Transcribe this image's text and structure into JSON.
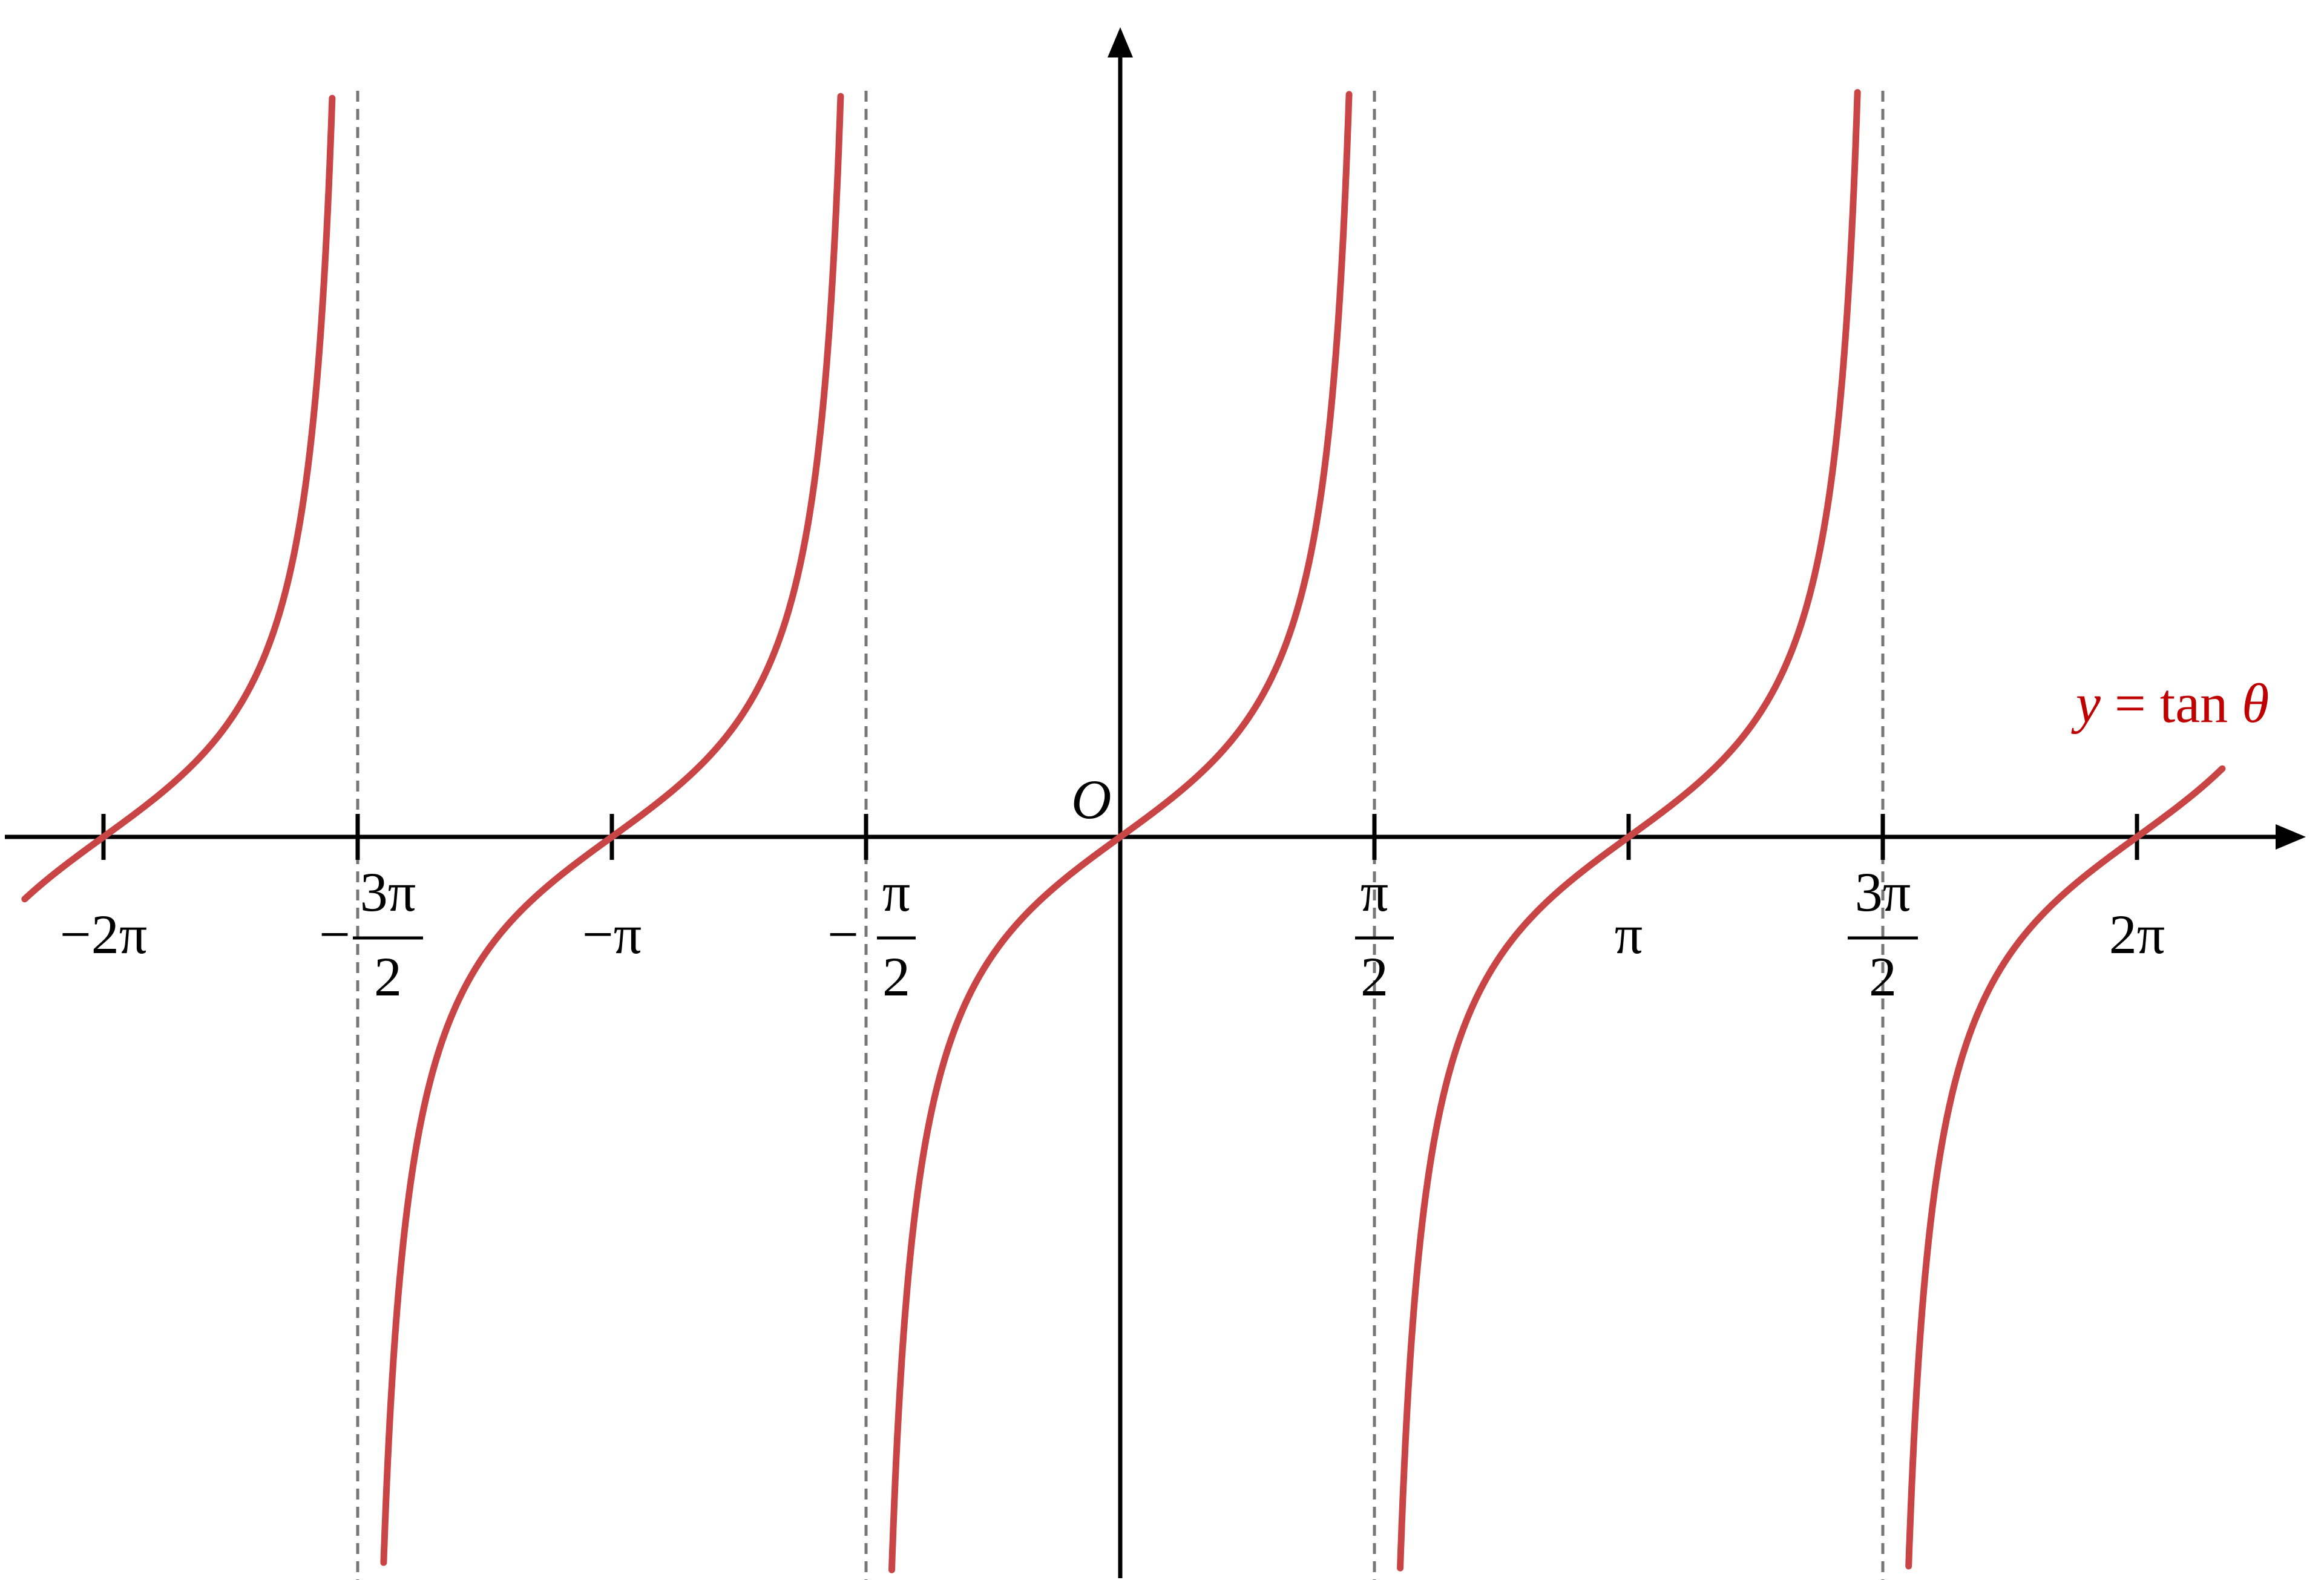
{
  "chart_data": {
    "type": "line",
    "title": "",
    "xlabel": "",
    "ylabel": "",
    "origin_label": "O",
    "series": [
      {
        "name": "y = tan θ",
        "function": "tan",
        "x_range": [
          -6.77,
          6.81
        ],
        "color": "#C94444"
      }
    ],
    "curve_label": {
      "lhs": "y",
      "eq": " = ",
      "fn": "tan ",
      "var": "θ",
      "color": "#C00000"
    },
    "asymptotes": [
      -4.7124,
      -1.5708,
      1.5708,
      4.7124
    ],
    "asymptote_color": "#777777",
    "x_ticks": [
      {
        "value": -6.2832,
        "sign": "−",
        "num": "2π",
        "den": ""
      },
      {
        "value": -4.7124,
        "sign": "−",
        "num": "3π",
        "den": "2"
      },
      {
        "value": -3.1416,
        "sign": "−",
        "num": "π",
        "den": ""
      },
      {
        "value": -1.5708,
        "sign": "−",
        "num": "π",
        "den": "2"
      },
      {
        "value": 1.5708,
        "sign": "",
        "num": "π",
        "den": "2"
      },
      {
        "value": 3.1416,
        "sign": "",
        "num": "π",
        "den": ""
      },
      {
        "value": 4.7124,
        "sign": "",
        "num": "3π",
        "den": "2"
      },
      {
        "value": 6.2832,
        "sign": "",
        "num": "2π",
        "den": ""
      }
    ],
    "ylim": [
      -6.4,
      6.3
    ],
    "grid": false
  }
}
